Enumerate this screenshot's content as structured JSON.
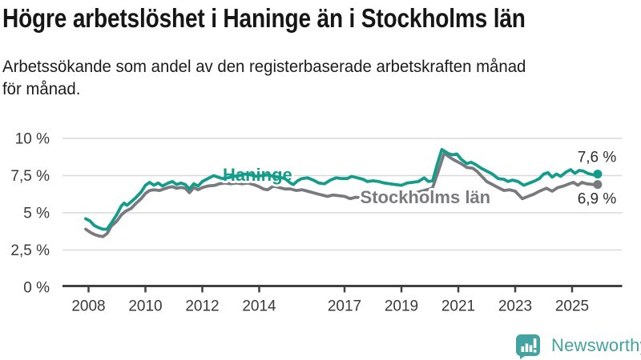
{
  "header": {
    "title": "Högre arbetslöshet i Haninge än i Stockholms län",
    "subtitle_line1": "Arbetssökande som andel av den registerbaserade arbetskraften månad",
    "subtitle_line2": "för månad."
  },
  "footer": {
    "brand": "Newsworthy",
    "logo_icon": "bar-chart-speech-bubble-icon",
    "brand_color": "#43a3a0"
  },
  "chart_data": {
    "type": "line",
    "title": "Högre arbetslöshet i Haninge än i Stockholms län",
    "unit": "%",
    "grid": true,
    "legend_position": "inline-labels",
    "xlim": [
      2007.85,
      2026.8
    ],
    "ylim": [
      0,
      10
    ],
    "x_ticks": [
      {
        "label": "2008",
        "year": 2008
      },
      {
        "label": "2010",
        "year": 2010
      },
      {
        "label": "2012",
        "year": 2012
      },
      {
        "label": "2014",
        "year": 2014
      },
      {
        "label": "2017",
        "year": 2017
      },
      {
        "label": "2019",
        "year": 2019
      },
      {
        "label": "2021",
        "year": 2021
      },
      {
        "label": "2023",
        "year": 2023
      },
      {
        "label": "2025",
        "year": 2025
      }
    ],
    "y_ticks": [
      {
        "label": "0 %",
        "value": 0
      },
      {
        "label": "2,5 %",
        "value": 2.5
      },
      {
        "label": "5 %",
        "value": 5
      },
      {
        "label": "7,5 %",
        "value": 7.5
      },
      {
        "label": "10 %",
        "value": 10
      }
    ],
    "colors": {
      "haninge": "#149c8b",
      "stockholm": "#797a7d",
      "grid": "#d9d9d9",
      "axis": "#404040",
      "tick_text": "#3a3a3a",
      "value_text": "#2e2e2e"
    },
    "series": [
      {
        "name": "Haninge",
        "color": "#149c8b",
        "end_label": "7,6 %",
        "end_label_dy": -15,
        "points": [
          [
            2007.9,
            4.6
          ],
          [
            2008.05,
            4.45
          ],
          [
            2008.2,
            4.15
          ],
          [
            2008.35,
            4.0
          ],
          [
            2008.5,
            3.9
          ],
          [
            2008.65,
            3.9
          ],
          [
            2008.8,
            4.3
          ],
          [
            2009.0,
            4.9
          ],
          [
            2009.15,
            5.45
          ],
          [
            2009.25,
            5.65
          ],
          [
            2009.35,
            5.5
          ],
          [
            2009.5,
            5.75
          ],
          [
            2009.65,
            6.0
          ],
          [
            2009.85,
            6.4
          ],
          [
            2010.0,
            6.85
          ],
          [
            2010.15,
            7.05
          ],
          [
            2010.3,
            6.85
          ],
          [
            2010.45,
            7.0
          ],
          [
            2010.6,
            6.8
          ],
          [
            2010.8,
            7.0
          ],
          [
            2010.95,
            7.1
          ],
          [
            2011.1,
            6.9
          ],
          [
            2011.25,
            7.0
          ],
          [
            2011.4,
            6.9
          ],
          [
            2011.55,
            6.6
          ],
          [
            2011.7,
            6.95
          ],
          [
            2011.85,
            6.8
          ],
          [
            2012.0,
            7.1
          ],
          [
            2012.2,
            7.3
          ],
          [
            2012.4,
            7.5
          ],
          [
            2012.55,
            7.4
          ],
          [
            2012.7,
            7.3
          ],
          [
            2012.9,
            7.35
          ],
          [
            2013.1,
            7.45
          ],
          [
            2013.3,
            7.5
          ],
          [
            2013.5,
            7.6
          ],
          [
            2013.7,
            7.55
          ],
          [
            2013.9,
            7.45
          ],
          [
            2014.1,
            7.5
          ],
          [
            2014.3,
            7.55
          ],
          [
            2014.5,
            7.45
          ],
          [
            2014.7,
            7.4
          ],
          [
            2014.9,
            7.3
          ],
          [
            2015.1,
            7.0
          ],
          [
            2015.2,
            6.9
          ],
          [
            2015.35,
            7.15
          ],
          [
            2015.5,
            7.3
          ],
          [
            2015.7,
            7.35
          ],
          [
            2015.9,
            7.2
          ],
          [
            2016.1,
            7.0
          ],
          [
            2016.3,
            6.95
          ],
          [
            2016.5,
            7.2
          ],
          [
            2016.7,
            7.35
          ],
          [
            2016.9,
            7.3
          ],
          [
            2017.1,
            7.3
          ],
          [
            2017.25,
            7.45
          ],
          [
            2017.45,
            7.35
          ],
          [
            2017.65,
            7.25
          ],
          [
            2017.8,
            7.1
          ],
          [
            2018.0,
            7.15
          ],
          [
            2018.2,
            7.1
          ],
          [
            2018.4,
            7.0
          ],
          [
            2018.6,
            6.95
          ],
          [
            2018.8,
            6.9
          ],
          [
            2019.0,
            6.85
          ],
          [
            2019.2,
            7.0
          ],
          [
            2019.4,
            7.05
          ],
          [
            2019.6,
            7.1
          ],
          [
            2019.8,
            7.35
          ],
          [
            2019.95,
            7.1
          ],
          [
            2020.1,
            7.15
          ],
          [
            2020.25,
            8.2
          ],
          [
            2020.42,
            9.25
          ],
          [
            2020.55,
            9.1
          ],
          [
            2020.68,
            8.95
          ],
          [
            2020.8,
            8.9
          ],
          [
            2020.95,
            8.95
          ],
          [
            2021.1,
            8.6
          ],
          [
            2021.3,
            8.3
          ],
          [
            2021.45,
            8.4
          ],
          [
            2021.6,
            8.25
          ],
          [
            2021.8,
            8.0
          ],
          [
            2022.0,
            7.8
          ],
          [
            2022.2,
            7.6
          ],
          [
            2022.4,
            7.3
          ],
          [
            2022.6,
            7.25
          ],
          [
            2022.75,
            7.1
          ],
          [
            2022.9,
            7.2
          ],
          [
            2023.1,
            7.1
          ],
          [
            2023.3,
            6.85
          ],
          [
            2023.5,
            7.0
          ],
          [
            2023.7,
            7.15
          ],
          [
            2023.85,
            7.3
          ],
          [
            2024.0,
            7.6
          ],
          [
            2024.15,
            7.7
          ],
          [
            2024.3,
            7.4
          ],
          [
            2024.45,
            7.6
          ],
          [
            2024.6,
            7.45
          ],
          [
            2024.8,
            7.75
          ],
          [
            2024.95,
            7.9
          ],
          [
            2025.1,
            7.65
          ],
          [
            2025.25,
            7.85
          ],
          [
            2025.4,
            7.8
          ],
          [
            2025.55,
            7.65
          ],
          [
            2025.75,
            7.55
          ],
          [
            2025.9,
            7.6
          ]
        ]
      },
      {
        "name": "Stockholms län",
        "color": "#797a7d",
        "end_label": "6,9 %",
        "end_label_dy": 24,
        "points": [
          [
            2007.9,
            3.9
          ],
          [
            2008.05,
            3.7
          ],
          [
            2008.2,
            3.55
          ],
          [
            2008.35,
            3.45
          ],
          [
            2008.5,
            3.4
          ],
          [
            2008.65,
            3.6
          ],
          [
            2008.8,
            4.1
          ],
          [
            2009.0,
            4.45
          ],
          [
            2009.15,
            4.85
          ],
          [
            2009.3,
            5.1
          ],
          [
            2009.5,
            5.3
          ],
          [
            2009.65,
            5.6
          ],
          [
            2009.85,
            5.95
          ],
          [
            2010.0,
            6.3
          ],
          [
            2010.15,
            6.5
          ],
          [
            2010.3,
            6.55
          ],
          [
            2010.5,
            6.5
          ],
          [
            2010.65,
            6.6
          ],
          [
            2010.8,
            6.7
          ],
          [
            2010.95,
            6.75
          ],
          [
            2011.1,
            6.65
          ],
          [
            2011.25,
            6.7
          ],
          [
            2011.4,
            6.65
          ],
          [
            2011.55,
            6.35
          ],
          [
            2011.7,
            6.7
          ],
          [
            2011.85,
            6.55
          ],
          [
            2012.0,
            6.7
          ],
          [
            2012.2,
            6.8
          ],
          [
            2012.45,
            6.85
          ],
          [
            2012.6,
            6.95
          ],
          [
            2012.8,
            7.0
          ],
          [
            2013.0,
            6.95
          ],
          [
            2013.2,
            7.0
          ],
          [
            2013.4,
            6.95
          ],
          [
            2013.6,
            7.0
          ],
          [
            2013.8,
            6.9
          ],
          [
            2014.0,
            6.75
          ],
          [
            2014.15,
            6.6
          ],
          [
            2014.3,
            6.55
          ],
          [
            2014.5,
            6.8
          ],
          [
            2014.7,
            6.7
          ],
          [
            2014.9,
            6.6
          ],
          [
            2015.1,
            6.6
          ],
          [
            2015.3,
            6.5
          ],
          [
            2015.5,
            6.55
          ],
          [
            2015.7,
            6.45
          ],
          [
            2015.9,
            6.35
          ],
          [
            2016.1,
            6.25
          ],
          [
            2016.4,
            6.1
          ],
          [
            2016.6,
            6.2
          ],
          [
            2016.8,
            6.15
          ],
          [
            2017.0,
            6.1
          ],
          [
            2017.2,
            5.95
          ],
          [
            2017.4,
            6.05
          ],
          [
            2017.6,
            6.0
          ],
          [
            2017.8,
            6.05
          ],
          [
            2018.0,
            6.0
          ],
          [
            2018.3,
            6.05
          ],
          [
            2018.6,
            6.1
          ],
          [
            2018.9,
            6.15
          ],
          [
            2019.2,
            6.25
          ],
          [
            2019.5,
            6.35
          ],
          [
            2019.8,
            6.5
          ],
          [
            2020.0,
            6.6
          ],
          [
            2020.1,
            6.7
          ],
          [
            2020.3,
            7.8
          ],
          [
            2020.5,
            9.0
          ],
          [
            2020.65,
            8.8
          ],
          [
            2020.8,
            8.6
          ],
          [
            2020.95,
            8.45
          ],
          [
            2021.1,
            8.3
          ],
          [
            2021.3,
            8.05
          ],
          [
            2021.5,
            8.0
          ],
          [
            2021.65,
            7.8
          ],
          [
            2021.8,
            7.5
          ],
          [
            2022.0,
            7.1
          ],
          [
            2022.2,
            6.9
          ],
          [
            2022.4,
            6.7
          ],
          [
            2022.6,
            6.5
          ],
          [
            2022.8,
            6.55
          ],
          [
            2023.0,
            6.45
          ],
          [
            2023.25,
            5.95
          ],
          [
            2023.45,
            6.1
          ],
          [
            2023.65,
            6.25
          ],
          [
            2023.85,
            6.45
          ],
          [
            2024.1,
            6.65
          ],
          [
            2024.3,
            6.45
          ],
          [
            2024.5,
            6.7
          ],
          [
            2024.7,
            6.8
          ],
          [
            2024.9,
            6.95
          ],
          [
            2025.05,
            7.05
          ],
          [
            2025.2,
            6.85
          ],
          [
            2025.35,
            7.05
          ],
          [
            2025.5,
            6.95
          ],
          [
            2025.75,
            6.9
          ],
          [
            2025.9,
            6.9
          ]
        ]
      }
    ],
    "series_labels": [
      {
        "text": "Haninge",
        "x": 2013.94,
        "y": 7.58,
        "color": "#149c8b"
      },
      {
        "text": "Stockholms län",
        "x": 2019.84,
        "y": 6.08,
        "color": "#797a7d"
      }
    ]
  }
}
